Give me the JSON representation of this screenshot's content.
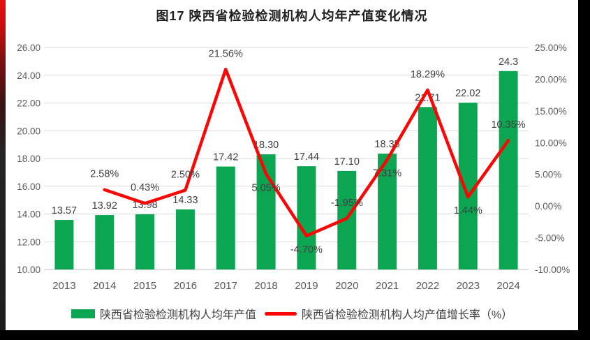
{
  "page": {
    "title": "图17 陕西省检验检测机构人均年产值变化情况"
  },
  "chart_data": {
    "type": "bar+line combo",
    "title": "图17 陕西省检验检测机构人均年产值变化情况",
    "categories": [
      "2013",
      "2014",
      "2015",
      "2016",
      "2017",
      "2018",
      "2019",
      "2020",
      "2021",
      "2022",
      "2023",
      "2024"
    ],
    "bar_series": {
      "name": "陕西省检验检测机构人均年产值",
      "axis": "left",
      "color": "#0ca551",
      "values": [
        13.57,
        13.92,
        13.98,
        14.33,
        17.42,
        18.3,
        17.44,
        17.1,
        18.35,
        21.71,
        22.02,
        24.3
      ],
      "labels": [
        "13.57",
        "13.92",
        "13.98",
        "14.33",
        "17.42",
        "18.30",
        "17.44",
        "17.10",
        "18.35",
        "21.71",
        "22.02",
        "24.3"
      ]
    },
    "line_series": {
      "name": "陕西省检验检测机构人均产值增长率（%）",
      "axis": "right",
      "color": "#fb0505",
      "x_start_index": 1,
      "values": [
        2.58,
        0.43,
        2.5,
        21.56,
        5.05,
        -4.7,
        -1.95,
        7.31,
        18.29,
        1.44,
        10.35
      ],
      "labels": [
        "2.58%",
        "0.43%",
        "2.50%",
        "21.56%",
        "5.05%",
        "-4.70%",
        "-1.95%",
        "7.31%",
        "18.29%",
        "1.44%",
        "10.35%"
      ]
    },
    "left_axis": {
      "min": 10,
      "max": 26,
      "step": 2,
      "ticks": [
        "26.00",
        "24.00",
        "22.00",
        "20.00",
        "18.00",
        "16.00",
        "14.00",
        "12.00",
        "10.00"
      ]
    },
    "right_axis": {
      "min": -10,
      "max": 25,
      "step": 5,
      "ticks": [
        "25.00%",
        "20.00%",
        "15.00%",
        "10.00%",
        "5.00%",
        "0.00%",
        "-5.00%",
        "-10.00%"
      ]
    },
    "grid": true,
    "legend_position": "bottom",
    "label_color": "#404040",
    "tick_color": "#595959",
    "gridline_color": "#d9d9d9",
    "axisline_color": "#bfbfbf"
  },
  "legend": {
    "bar_label": "陕西省检验检测机构人均年产值",
    "line_label": "陕西省检验检测机构人均产值增长率（%）"
  }
}
